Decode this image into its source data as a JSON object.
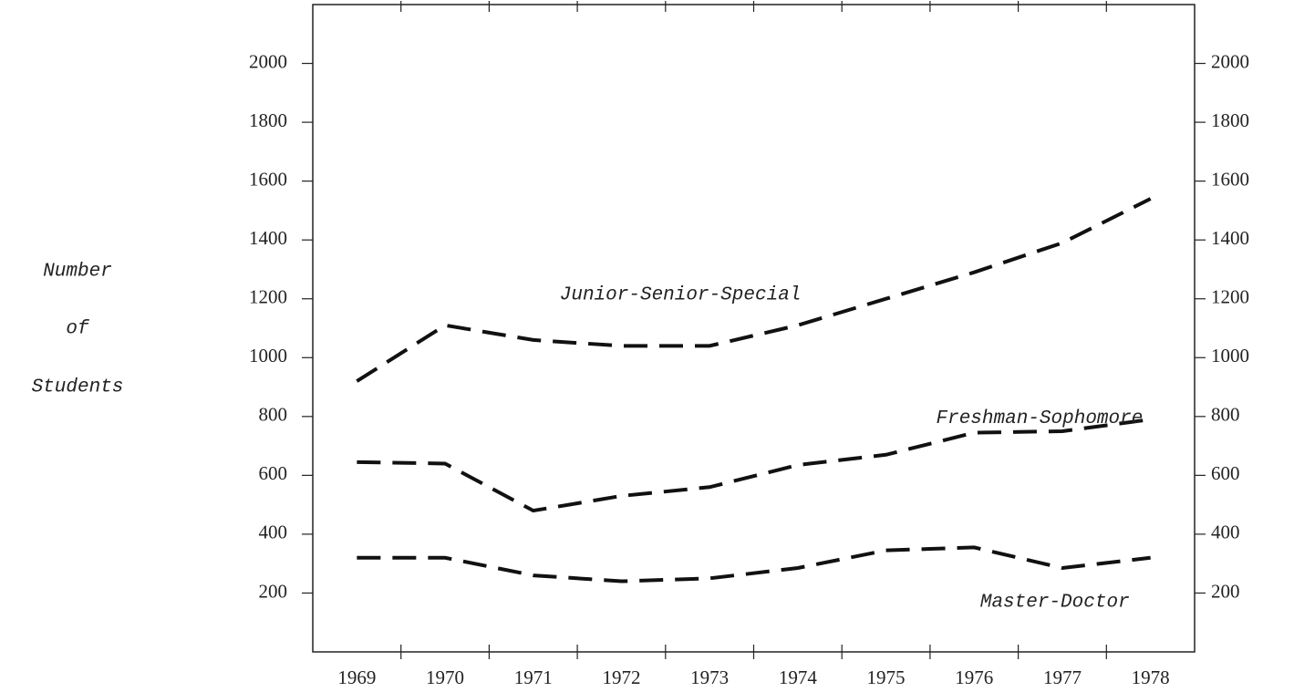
{
  "chart_data": {
    "type": "line",
    "ylabel": [
      "Number",
      "of",
      "Students"
    ],
    "categories": [
      "1969",
      "1970",
      "1971",
      "1972",
      "1973",
      "1974",
      "1975",
      "1976",
      "1977",
      "1978"
    ],
    "series": [
      {
        "name": "Junior-Senior-Special",
        "color": "#111111",
        "values": [
          920,
          1110,
          1060,
          1040,
          1040,
          1110,
          1200,
          1290,
          1390,
          1540
        ]
      },
      {
        "name": "Freshman-Sophomore",
        "color": "#111111",
        "values": [
          645,
          640,
          480,
          530,
          560,
          635,
          670,
          745,
          750,
          790
        ]
      },
      {
        "name": "Master-Doctor",
        "color": "#111111",
        "values": [
          320,
          320,
          260,
          240,
          250,
          285,
          345,
          355,
          285,
          320
        ]
      }
    ],
    "ylim": [
      0,
      2200
    ],
    "yticks": [
      200,
      400,
      600,
      800,
      1000,
      1200,
      1400,
      1600,
      1800,
      2000
    ],
    "grid": false
  }
}
